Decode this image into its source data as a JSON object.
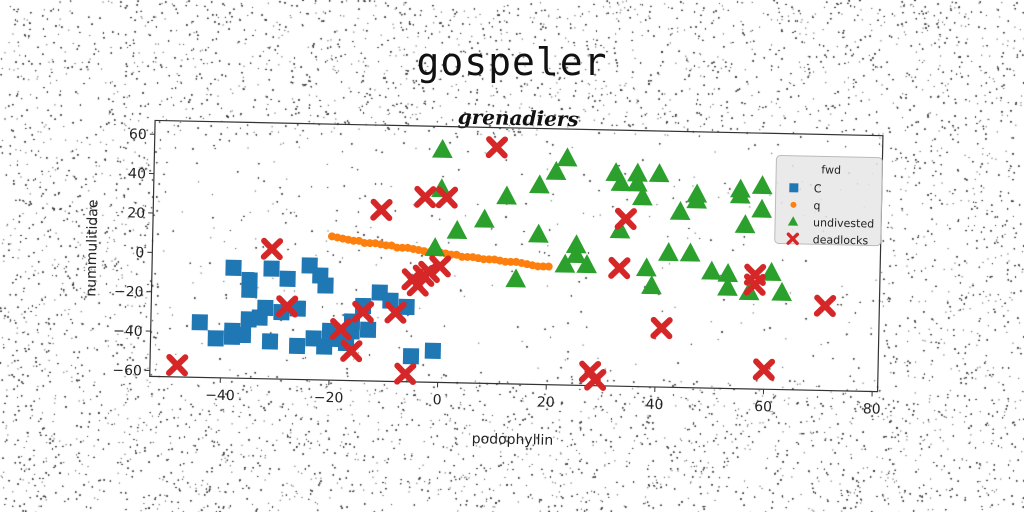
{
  "page_title": "gospeler",
  "chart_data": {
    "type": "scatter",
    "title": "grenadiers",
    "xlabel": "podophyllin",
    "ylabel": "nummulitidae",
    "xlim": [
      -53,
      81
    ],
    "ylim": [
      -63,
      67
    ],
    "x_ticks": [
      -40,
      -20,
      0,
      20,
      40,
      60,
      80
    ],
    "y_ticks": [
      -60,
      -40,
      -20,
      0,
      20,
      40,
      60
    ],
    "x_tick_labels": [
      "−40",
      "−20",
      "0",
      "20",
      "40",
      "60",
      "80"
    ],
    "y_tick_labels": [
      "−60",
      "−40",
      "−20",
      "0",
      "20",
      "40",
      "60"
    ],
    "grid": false,
    "legend": {
      "title": "fwd",
      "position": "top-right"
    },
    "series": [
      {
        "name": "C",
        "marker": "square",
        "color": "#1f77b4",
        "points": [
          [
            -38,
            -7
          ],
          [
            -35,
            -13
          ],
          [
            -35,
            -18
          ],
          [
            -31,
            -7
          ],
          [
            -28,
            -12
          ],
          [
            -24,
            -5
          ],
          [
            -22,
            -10
          ],
          [
            -21,
            -15
          ],
          [
            -26,
            -27
          ],
          [
            -32,
            -27
          ],
          [
            -35,
            -33
          ],
          [
            -38,
            -39
          ],
          [
            -44,
            -35
          ],
          [
            -41,
            -43
          ],
          [
            -36,
            -41
          ],
          [
            -31,
            -44
          ],
          [
            -26,
            -46
          ],
          [
            -21,
            -46
          ],
          [
            -19,
            -42
          ],
          [
            -16,
            -38
          ],
          [
            -13,
            -37
          ],
          [
            -16,
            -33
          ],
          [
            -14,
            -25
          ],
          [
            -11,
            -18
          ],
          [
            -9,
            -22
          ],
          [
            -6,
            -25
          ],
          [
            -5,
            -50
          ],
          [
            -1,
            -47
          ],
          [
            -33,
            -32
          ],
          [
            -29,
            -29
          ],
          [
            -23,
            -42
          ],
          [
            -20,
            -38
          ],
          [
            -17,
            -44
          ],
          [
            -38,
            -42
          ]
        ]
      },
      {
        "name": "q",
        "marker": "circle",
        "color": "#ff7f0e",
        "points": [
          [
            -20,
            10
          ],
          [
            -18,
            9
          ],
          [
            -16,
            8
          ],
          [
            -14,
            7
          ],
          [
            -12,
            7
          ],
          [
            -10,
            6
          ],
          [
            -8,
            5
          ],
          [
            -6,
            5
          ],
          [
            -4,
            4
          ],
          [
            -2,
            3
          ],
          [
            0,
            3
          ],
          [
            2,
            2
          ],
          [
            4,
            1
          ],
          [
            6,
            1
          ],
          [
            8,
            0
          ],
          [
            10,
            0
          ],
          [
            12,
            -1
          ],
          [
            14,
            -1
          ],
          [
            16,
            -2
          ],
          [
            18,
            -3
          ],
          [
            20,
            -3
          ],
          [
            -19,
            9.5
          ],
          [
            -17,
            8.5
          ],
          [
            -15,
            8
          ],
          [
            -13,
            7
          ],
          [
            -11,
            6.5
          ],
          [
            -9,
            6
          ],
          [
            -7,
            5
          ],
          [
            -5,
            4.5
          ],
          [
            -3,
            3.5
          ],
          [
            -1,
            3
          ],
          [
            1,
            2.5
          ],
          [
            3,
            2
          ],
          [
            5,
            1
          ],
          [
            7,
            0.5
          ],
          [
            9,
            0
          ],
          [
            11,
            -0.5
          ],
          [
            13,
            -1
          ],
          [
            15,
            -1.5
          ],
          [
            17,
            -2.5
          ],
          [
            19,
            -3
          ]
        ]
      },
      {
        "name": "undivested",
        "marker": "triangle",
        "color": "#2ca02c",
        "points": [
          [
            0,
            55
          ],
          [
            0,
            35
          ],
          [
            -1,
            5
          ],
          [
            3,
            14
          ],
          [
            8,
            20
          ],
          [
            12,
            32
          ],
          [
            14,
            -10
          ],
          [
            18,
            13
          ],
          [
            18,
            38
          ],
          [
            21,
            45
          ],
          [
            23,
            52
          ],
          [
            25,
            3
          ],
          [
            27,
            -2
          ],
          [
            32,
            45
          ],
          [
            33,
            40
          ],
          [
            33,
            16
          ],
          [
            36,
            40
          ],
          [
            36,
            45
          ],
          [
            37,
            33
          ],
          [
            38,
            -3
          ],
          [
            40,
            45
          ],
          [
            39,
            -12
          ],
          [
            42,
            5
          ],
          [
            44,
            26
          ],
          [
            47,
            32
          ],
          [
            47,
            35
          ],
          [
            46,
            5
          ],
          [
            50,
            -4
          ],
          [
            53,
            -5
          ],
          [
            53,
            -12
          ],
          [
            55,
            35
          ],
          [
            55,
            38
          ],
          [
            56,
            20
          ],
          [
            57,
            -14
          ],
          [
            59,
            40
          ],
          [
            59,
            28
          ],
          [
            61,
            -4
          ],
          [
            63,
            -14
          ],
          [
            23,
            -2
          ],
          [
            25,
            8
          ]
        ]
      },
      {
        "name": "deadlocks",
        "marker": "x",
        "color": "#d62728",
        "points": [
          [
            -48,
            -57
          ],
          [
            -31,
            3
          ],
          [
            -28,
            -26
          ],
          [
            -18,
            -37
          ],
          [
            -16,
            -48
          ],
          [
            -14,
            -28
          ],
          [
            -11,
            24
          ],
          [
            -8,
            -28
          ],
          [
            -6,
            -59
          ],
          [
            -4,
            -14
          ],
          [
            -3,
            -9
          ],
          [
            -2,
            -7
          ],
          [
            1,
            31
          ],
          [
            0,
            -4
          ],
          [
            10,
            57
          ],
          [
            28,
            -56
          ],
          [
            29,
            -60
          ],
          [
            33,
            -3
          ],
          [
            34,
            22
          ],
          [
            41,
            -33
          ],
          [
            58,
            -5
          ],
          [
            58,
            -10
          ],
          [
            60,
            -53
          ],
          [
            71,
            -20
          ],
          [
            -3,
            31
          ],
          [
            -5,
            -11
          ]
        ]
      }
    ]
  }
}
